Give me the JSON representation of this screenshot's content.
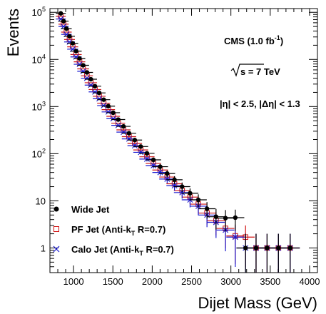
{
  "chart_data": {
    "type": "scatter",
    "title": "",
    "xlabel": "Dijet Mass (GeV)",
    "ylabel": "Events",
    "xlim": [
      700,
      4100
    ],
    "ylim": [
      0.3,
      120000
    ],
    "yscale": "log",
    "x_ticks": [
      1000,
      1500,
      2000,
      2500,
      3000,
      3500,
      4000
    ],
    "x_tick_labels": [
      "1000",
      "1500",
      "2000",
      "2500",
      "3000",
      "3500",
      "4000"
    ],
    "y_ticks": [
      1,
      10,
      100,
      1000,
      10000,
      100000
    ],
    "y_tick_labels": [
      {
        "base": "1",
        "exp": ""
      },
      {
        "base": "10",
        "exp": ""
      },
      {
        "base": "10",
        "exp": "2"
      },
      {
        "base": "10",
        "exp": "3"
      },
      {
        "base": "10",
        "exp": "4"
      },
      {
        "base": "10",
        "exp": "5"
      }
    ],
    "annotations": {
      "cms_main": "CMS (1.0 fb",
      "cms_sup": "-1",
      "cms_close": ")",
      "sqrt_s": "s = 7 TeV",
      "eta_cut": "|η| < 2.5, |Δη| < 1.3"
    },
    "legend": {
      "placement": "bottom-left",
      "entries": [
        {
          "series": "Wide Jet",
          "text": "Wide Jet",
          "sub": "",
          "tail": ""
        },
        {
          "series": "PF Jet (Anti-kT R=0.7)",
          "text": "PF Jet (Anti-k",
          "sub": "T",
          "tail": " R=0.7)"
        },
        {
          "series": "Calo Jet (Anti-kT R=0.7)",
          "text": "Calo Jet (Anti-k",
          "sub": "T",
          "tail": " R=0.7)"
        }
      ]
    },
    "series": [
      {
        "name": "Wide Jet",
        "marker": "filled-circle",
        "color": "#000000",
        "points": [
          [
            838,
            95000
          ],
          [
            873,
            65000
          ],
          [
            910,
            45000
          ],
          [
            949,
            31000
          ],
          [
            989,
            22000
          ],
          [
            1032,
            15000
          ],
          [
            1076,
            10500
          ],
          [
            1122,
            7500
          ],
          [
            1170,
            5300
          ],
          [
            1220,
            3800
          ],
          [
            1272,
            2700
          ],
          [
            1326,
            1950
          ],
          [
            1383,
            1400
          ],
          [
            1442,
            1020
          ],
          [
            1504,
            740
          ],
          [
            1568,
            530
          ],
          [
            1635,
            380
          ],
          [
            1705,
            272
          ],
          [
            1778,
            195
          ],
          [
            1854,
            142
          ],
          [
            1933,
            102
          ],
          [
            2015,
            74
          ],
          [
            2101,
            53
          ],
          [
            2190,
            38
          ],
          [
            2283,
            28
          ],
          [
            2380,
            20
          ],
          [
            2481,
            14.5
          ],
          [
            2586,
            10.5
          ],
          [
            2696,
            6.8
          ],
          [
            2811,
            4.6
          ],
          [
            2931,
            4.3
          ],
          [
            3056,
            4.4
          ],
          [
            3186,
            1
          ],
          [
            3320,
            1
          ],
          [
            3460,
            1
          ],
          [
            3604,
            1
          ],
          [
            3753,
            1
          ]
        ],
        "errors": true
      },
      {
        "name": "PF Jet (Anti-kT R=0.7)",
        "marker": "open-square",
        "color": "#d01010",
        "points": [
          [
            838,
            82000
          ],
          [
            873,
            56000
          ],
          [
            910,
            38000
          ],
          [
            949,
            26500
          ],
          [
            989,
            18500
          ],
          [
            1032,
            12700
          ],
          [
            1076,
            8900
          ],
          [
            1122,
            6300
          ],
          [
            1170,
            4500
          ],
          [
            1220,
            3200
          ],
          [
            1272,
            2300
          ],
          [
            1326,
            1650
          ],
          [
            1383,
            1180
          ],
          [
            1442,
            860
          ],
          [
            1504,
            620
          ],
          [
            1568,
            445
          ],
          [
            1635,
            320
          ],
          [
            1705,
            230
          ],
          [
            1778,
            165
          ],
          [
            1854,
            120
          ],
          [
            1933,
            86
          ],
          [
            2015,
            62
          ],
          [
            2101,
            45
          ],
          [
            2190,
            32
          ],
          [
            2283,
            23
          ],
          [
            2380,
            16.5
          ],
          [
            2481,
            12
          ],
          [
            2586,
            8.5
          ],
          [
            2696,
            5.5
          ],
          [
            2811,
            3.8
          ],
          [
            2931,
            2.6
          ],
          [
            3056,
            1.8
          ],
          [
            3186,
            1.7
          ],
          [
            3320,
            1
          ],
          [
            3460,
            1
          ],
          [
            3604,
            1
          ],
          [
            3753,
            1
          ]
        ],
        "errors": true
      },
      {
        "name": "Calo Jet (Anti-kT R=0.7)",
        "marker": "x",
        "color": "#1a1ad0",
        "points": [
          [
            838,
            72000
          ],
          [
            873,
            50000
          ],
          [
            910,
            34000
          ],
          [
            949,
            23500
          ],
          [
            989,
            16500
          ],
          [
            1032,
            11300
          ],
          [
            1076,
            7900
          ],
          [
            1122,
            5600
          ],
          [
            1170,
            4000
          ],
          [
            1220,
            2850
          ],
          [
            1272,
            2050
          ],
          [
            1326,
            1470
          ],
          [
            1383,
            1050
          ],
          [
            1442,
            770
          ],
          [
            1504,
            555
          ],
          [
            1568,
            400
          ],
          [
            1635,
            287
          ],
          [
            1705,
            206
          ],
          [
            1778,
            148
          ],
          [
            1854,
            107
          ],
          [
            1933,
            77
          ],
          [
            2015,
            56
          ],
          [
            2101,
            40
          ],
          [
            2190,
            29
          ],
          [
            2283,
            21
          ],
          [
            2380,
            15
          ],
          [
            2481,
            10.5
          ],
          [
            2586,
            7.7
          ],
          [
            2696,
            5
          ],
          [
            2811,
            3.5
          ],
          [
            2931,
            2.4
          ],
          [
            3056,
            1.7
          ],
          [
            3186,
            1
          ],
          [
            3320,
            1
          ],
          [
            3460,
            1
          ],
          [
            3604,
            1
          ],
          [
            3753,
            1
          ]
        ],
        "errors": true
      }
    ]
  }
}
